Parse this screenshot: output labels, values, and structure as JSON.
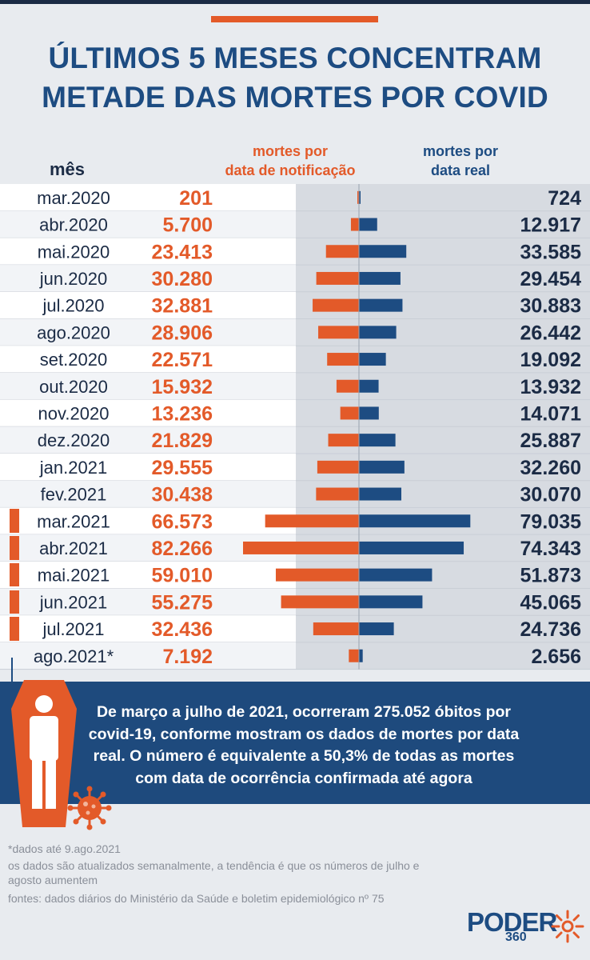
{
  "title": {
    "line1": "ÚLTIMOS 5 MESES CONCENTRAM",
    "line2": "METADE DAS MORTES POR COVID"
  },
  "headers": {
    "month": "mês",
    "notification_1": "mortes por",
    "notification_2": "data de notificação",
    "real_1": "mortes por",
    "real_2": "data real"
  },
  "colors": {
    "notification": "#e35a29",
    "real": "#1d4c82",
    "title": "#1d4c82",
    "panel": "#1e4a7d",
    "background": "#e8ebef"
  },
  "chart_data": {
    "type": "bar",
    "orientation": "horizontal-diverging",
    "categories": [
      "mar.2020",
      "abr.2020",
      "mai.2020",
      "jun.2020",
      "jul.2020",
      "ago.2020",
      "set.2020",
      "out.2020",
      "nov.2020",
      "dez.2020",
      "jan.2021",
      "fev.2021",
      "mar.2021",
      "abr.2021",
      "mai.2021",
      "jun.2021",
      "jul.2021",
      "ago.2021*"
    ],
    "series": [
      {
        "name": "mortes por data de notificação",
        "values": [
          201,
          5700,
          23413,
          30280,
          32881,
          28906,
          22571,
          15932,
          13236,
          21829,
          29555,
          30438,
          66573,
          82266,
          59010,
          55275,
          32436,
          7192
        ],
        "labels": [
          "201",
          "5.700",
          "23.413",
          "30.280",
          "32.881",
          "28.906",
          "22.571",
          "15.932",
          "13.236",
          "21.829",
          "29.555",
          "30.438",
          "66.573",
          "82.266",
          "59.010",
          "55.275",
          "32.436",
          "7.192"
        ],
        "color": "#e35a29"
      },
      {
        "name": "mortes por data real",
        "values": [
          724,
          12917,
          33585,
          29454,
          30883,
          26442,
          19092,
          13932,
          14071,
          25887,
          32260,
          30070,
          79035,
          74343,
          51873,
          45065,
          24736,
          2656
        ],
        "labels": [
          "724",
          "12.917",
          "33.585",
          "29.454",
          "30.883",
          "26.442",
          "19.092",
          "13.932",
          "14.071",
          "25.887",
          "32.260",
          "30.070",
          "79.035",
          "74.343",
          "51.873",
          "45.065",
          "24.736",
          "2.656"
        ],
        "color": "#1d4c82"
      }
    ],
    "highlighted_categories": [
      "mar.2021",
      "abr.2021",
      "mai.2021",
      "jun.2021",
      "jul.2021"
    ]
  },
  "panel": {
    "text": "De março a julho de 2021, ocorreram 275.052 óbitos por covid-19, conforme mostram os dados de mortes por data real. O número é equivalente a 50,3% de todas as mortes com data de ocorrência confirmada até agora"
  },
  "footer": {
    "note": "*dados até 9.ago.2021",
    "update": "os dados são atualizados semanalmente, a tendência é que os números de julho e agosto aumentem",
    "sources": "fontes: dados diários do Ministério da Saúde e boletim epidemiológico nº 75"
  },
  "logo": {
    "main": "PODER",
    "sub": "360"
  }
}
